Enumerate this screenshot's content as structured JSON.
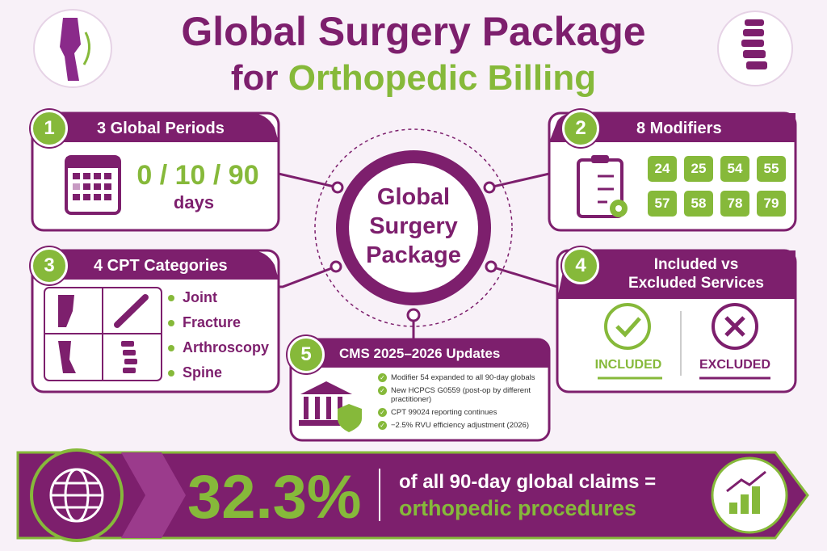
{
  "header": {
    "title_line1": "Global Surgery Package",
    "title_line2_prefix": "for",
    "title_line2_highlight": "Orthopedic Billing"
  },
  "center": {
    "lines": [
      "Global",
      "Surgery",
      "Package"
    ]
  },
  "panel1": {
    "number": "1",
    "title": "3 Global Periods",
    "value": "0 / 10 / 90",
    "unit": "days"
  },
  "panel2": {
    "number": "2",
    "title": "8 Modifiers",
    "modifiers": [
      "24",
      "25",
      "54",
      "55",
      "57",
      "58",
      "78",
      "79"
    ]
  },
  "panel3": {
    "number": "3",
    "title": "4 CPT Categories",
    "items": [
      "Joint",
      "Fracture",
      "Arthroscopy",
      "Spine"
    ]
  },
  "panel4": {
    "number": "4",
    "title_lines": [
      "Included vs",
      "Excluded Services"
    ],
    "included": "INCLUDED",
    "excluded": "EXCLUDED"
  },
  "panel5": {
    "number": "5",
    "title": "CMS 2025–2026 Updates",
    "items": [
      "Modifier 54 expanded to all 90-day globals",
      "New HCPCS G0559 (post-op by different practitioner)",
      "CPT 99024 reporting continues",
      "−2.5% RVU efficiency adjustment (2026)"
    ]
  },
  "banner": {
    "stat": "32.3%",
    "line1": "of all 90-day global claims =",
    "line2": "orthopedic procedures"
  }
}
